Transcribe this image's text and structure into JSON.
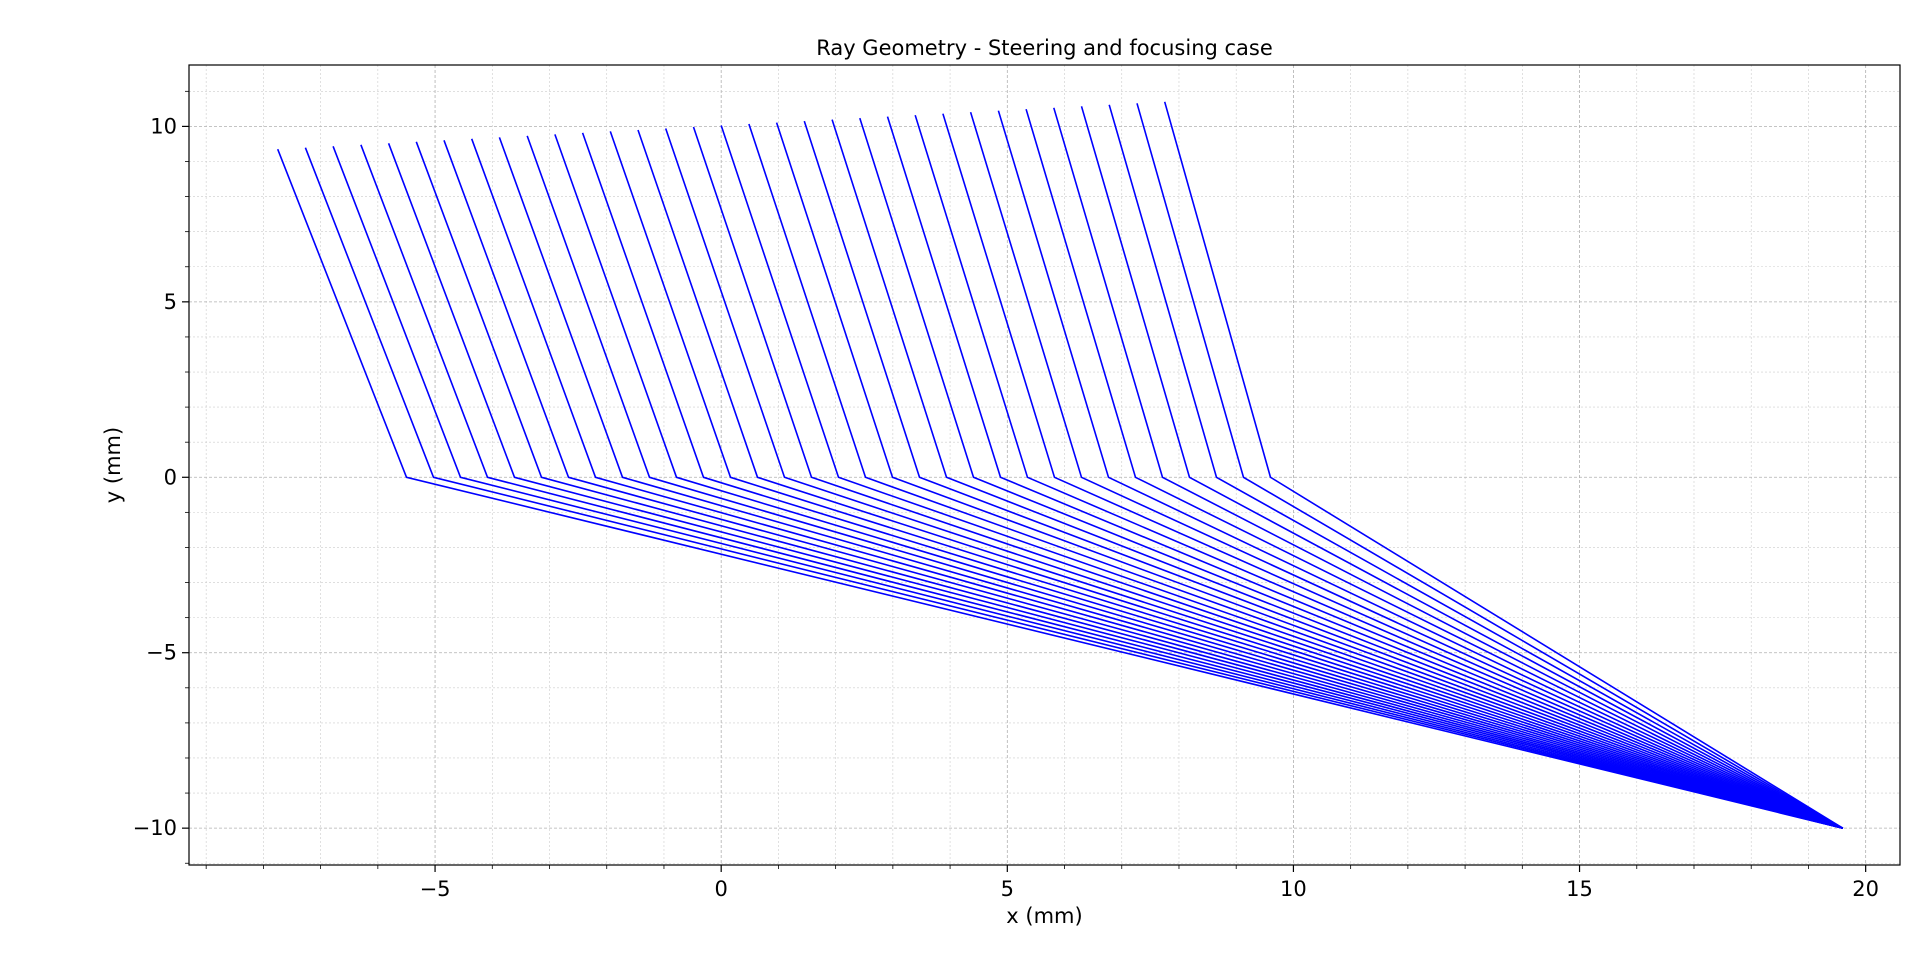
{
  "chart_data": {
    "type": "line",
    "title": "Ray Geometry - Steering and focusing case",
    "xlabel": "x (mm)",
    "ylabel": "y (mm)",
    "xlim": [
      -9.3,
      20.6
    ],
    "ylim": [
      -11.05,
      11.75
    ],
    "x_major_ticks": [
      -5,
      0,
      5,
      10,
      15,
      20
    ],
    "x_tick_labels": [
      "−5",
      "0",
      "5",
      "10",
      "15",
      "20"
    ],
    "y_major_ticks": [
      -10,
      -5,
      0,
      5,
      10
    ],
    "y_tick_labels": [
      "−10",
      "−5",
      "0",
      "5",
      "10"
    ],
    "x_minor_step": 1,
    "y_minor_step": 1,
    "grid": "on",
    "line_color": "#0000ff",
    "focus_point": [
      19.6,
      -10
    ],
    "ray_count": 33,
    "interface_start_x": -5.5,
    "interface_end_x": 9.6,
    "source_start": [
      -7.75,
      9.35
    ],
    "source_end": [
      7.75,
      10.7
    ]
  }
}
